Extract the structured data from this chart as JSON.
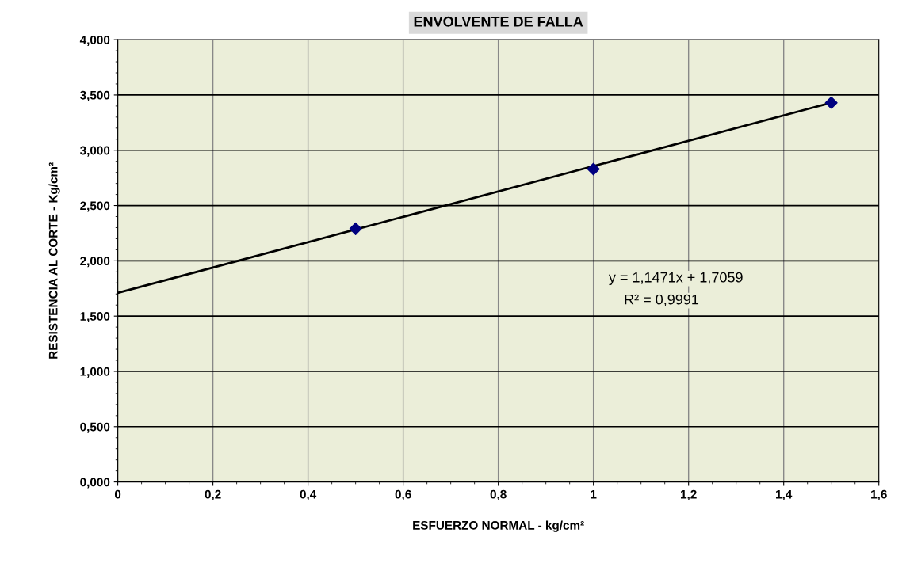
{
  "chart_data": {
    "type": "scatter",
    "title": "ENVOLVENTE DE FALLA",
    "xlabel": "ESFUERZO NORMAL - kg/cm²",
    "ylabel": "RESISTENCIA AL CORTE - Kg/cm²",
    "x": [
      0.5,
      1,
      1.5
    ],
    "series": [
      {
        "type": "scatter",
        "color": "#000080",
        "marker": "diamond",
        "values": [
          2.29,
          2.83,
          3.43
        ]
      },
      {
        "type": "line",
        "color": "#000000",
        "marker": "none",
        "line_style": "solid",
        "x": [
          0,
          1.5
        ],
        "values": [
          1.71,
          3.43
        ]
      }
    ],
    "xlim": [
      0,
      1.6
    ],
    "xticks": [
      {
        "value": 0,
        "label": "0"
      },
      {
        "value": 0.2,
        "label": "0,2"
      },
      {
        "value": 0.4,
        "label": "0,4"
      },
      {
        "value": 0.6,
        "label": "0,6"
      },
      {
        "value": 0.8,
        "label": "0,8"
      },
      {
        "value": 1,
        "label": "1"
      },
      {
        "value": 1.2,
        "label": "1,2"
      },
      {
        "value": 1.4,
        "label": "1,4"
      },
      {
        "value": 1.6,
        "label": "1,6"
      }
    ],
    "ylim": [
      0,
      4
    ],
    "yticks": [
      {
        "value": 0,
        "label": "0,000"
      },
      {
        "value": 0.5,
        "label": "0,500"
      },
      {
        "value": 1,
        "label": "1,000"
      },
      {
        "value": 1.5,
        "label": "1,500"
      },
      {
        "value": 2,
        "label": "2,000"
      },
      {
        "value": 2.5,
        "label": "2,500"
      },
      {
        "value": 3,
        "label": "3,000"
      },
      {
        "value": 3.5,
        "label": "3,500"
      },
      {
        "value": 4,
        "label": "4,000"
      }
    ],
    "grid": true,
    "legend": false,
    "annotations": [
      "y = 1,1471x + 1,7059",
      "R² = 0,9991"
    ]
  }
}
